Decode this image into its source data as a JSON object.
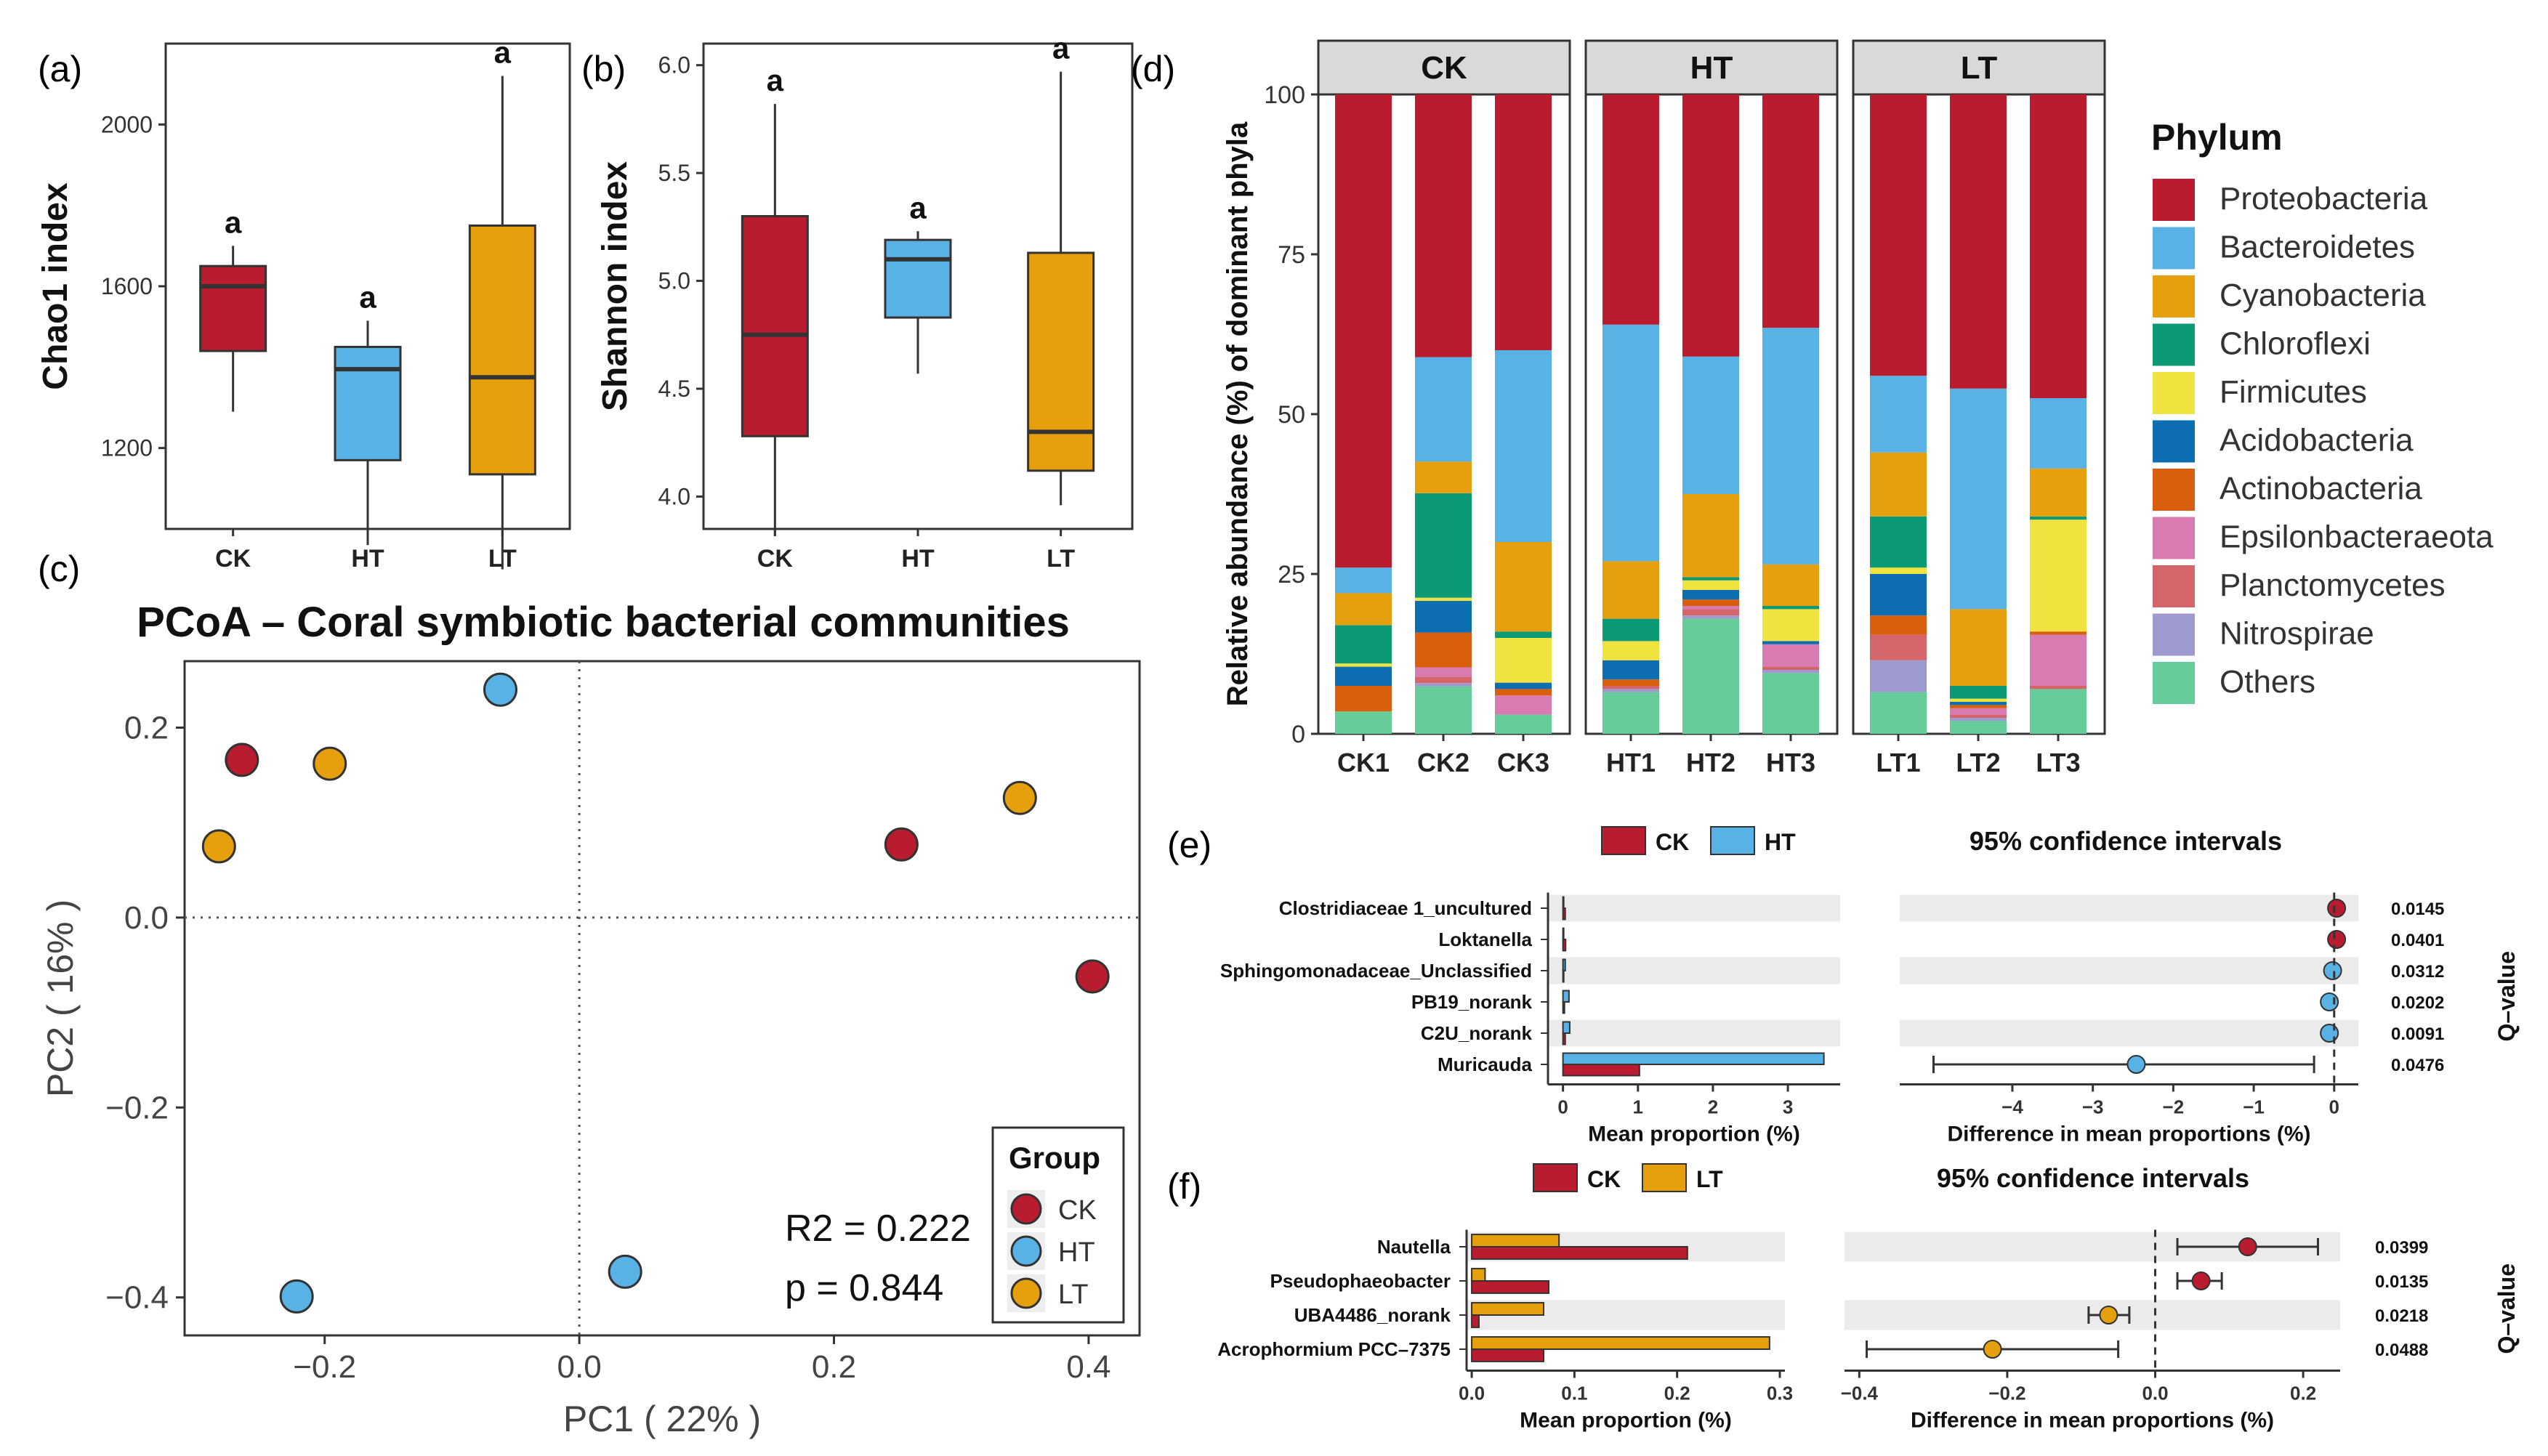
{
  "colors": {
    "CK": "#b81c2e",
    "HT": "#58b2e6",
    "LT": "#e6a00e",
    "grid": "#ebebeb",
    "strip": "#d9d9d9",
    "axis": "#333333"
  },
  "panel_labels": {
    "a": "(a)",
    "b": "(b)",
    "c": "(c)",
    "d": "(d)",
    "e": "(e)",
    "f": "(f)"
  },
  "chart_data": [
    {
      "id": "a",
      "type": "box",
      "ylabel": "Chao1 index",
      "categories": [
        "CK",
        "HT",
        "LT"
      ],
      "ylim": [
        1000,
        2200
      ],
      "yticks": [
        1200,
        1600,
        2000
      ],
      "boxes": [
        {
          "group": "CK",
          "min": 1290,
          "q1": 1440,
          "median": 1600,
          "q3": 1650,
          "max": 1700,
          "letter": "a"
        },
        {
          "group": "HT",
          "min": 960,
          "q1": 1170,
          "median": 1395,
          "q3": 1450,
          "max": 1515,
          "letter": "a"
        },
        {
          "group": "LT",
          "min": 900,
          "q1": 1135,
          "median": 1375,
          "q3": 1750,
          "max": 2120,
          "letter": "a"
        }
      ]
    },
    {
      "id": "b",
      "type": "box",
      "ylabel": "Shannon index",
      "categories": [
        "CK",
        "HT",
        "LT"
      ],
      "ylim": [
        3.85,
        6.1
      ],
      "yticks": [
        "4.0",
        "4.5",
        "5.0",
        "5.5",
        "6.0"
      ],
      "boxes": [
        {
          "group": "CK",
          "min": 3.82,
          "q1": 4.28,
          "median": 4.75,
          "q3": 5.3,
          "max": 5.82,
          "letter": "a"
        },
        {
          "group": "HT",
          "min": 4.57,
          "q1": 4.83,
          "median": 5.1,
          "q3": 5.19,
          "max": 5.23,
          "letter": "a"
        },
        {
          "group": "LT",
          "min": 3.96,
          "q1": 4.12,
          "median": 4.3,
          "q3": 5.13,
          "max": 5.97,
          "letter": "a"
        }
      ]
    },
    {
      "id": "c",
      "type": "scatter",
      "title": "PCoA – Coral symbiotic bacterial communities",
      "xlabel": "PC1 ( 22% )",
      "ylabel": "PC2 ( 16% )",
      "xlim": [
        -0.31,
        0.44
      ],
      "ylim": [
        -0.44,
        0.27
      ],
      "xticks": [
        "−0.2",
        "0.0",
        "0.2",
        "0.4"
      ],
      "xtick_values": [
        -0.2,
        0.0,
        0.2,
        0.4
      ],
      "yticks": [
        "−0.4",
        "−0.2",
        "0.0",
        "0.2"
      ],
      "ytick_values": [
        -0.4,
        -0.2,
        0.0,
        0.2
      ],
      "points": [
        {
          "group": "CK",
          "x": -0.265,
          "y": 0.166
        },
        {
          "group": "CK",
          "x": 0.253,
          "y": 0.077
        },
        {
          "group": "CK",
          "x": 0.403,
          "y": -0.062
        },
        {
          "group": "HT",
          "x": -0.062,
          "y": 0.24
        },
        {
          "group": "HT",
          "x": -0.222,
          "y": -0.399
        },
        {
          "group": "HT",
          "x": 0.036,
          "y": -0.373
        },
        {
          "group": "LT",
          "x": -0.196,
          "y": 0.162
        },
        {
          "group": "LT",
          "x": -0.283,
          "y": 0.075
        },
        {
          "group": "LT",
          "x": 0.346,
          "y": 0.126
        }
      ],
      "legend_title": "Group",
      "legend": [
        "CK",
        "HT",
        "LT"
      ],
      "stat_r2": "R2 = 0.222",
      "stat_p": "p = 0.844"
    },
    {
      "id": "d",
      "type": "stacked_bar",
      "ylabel": "Relative abundance (%) of dominant phyla",
      "ylim": [
        0,
        100
      ],
      "yticks": [
        "0",
        "25",
        "50",
        "75",
        "100"
      ],
      "ytick_values": [
        0,
        25,
        50,
        75,
        100
      ],
      "facets": [
        {
          "name": "CK",
          "samples": [
            "CK1",
            "CK2",
            "CK3"
          ]
        },
        {
          "name": "HT",
          "samples": [
            "HT1",
            "HT2",
            "HT3"
          ]
        },
        {
          "name": "LT",
          "samples": [
            "LT1",
            "LT2",
            "LT3"
          ]
        }
      ],
      "legend_title": "Phylum",
      "series": [
        {
          "name": "Proteobacteria",
          "color": "#b81c2e"
        },
        {
          "name": "Bacteroidetes",
          "color": "#58b2e6"
        },
        {
          "name": "Cyanobacteria",
          "color": "#e6a00e"
        },
        {
          "name": "Chloroflexi",
          "color": "#0c9a76"
        },
        {
          "name": "Firmicutes",
          "color": "#f0e340"
        },
        {
          "name": "Acidobacteria",
          "color": "#0c6db0"
        },
        {
          "name": "Actinobacteria",
          "color": "#d95f0e"
        },
        {
          "name": "Epsilonbacteraeota",
          "color": "#d87bb0"
        },
        {
          "name": "Planctomycetes",
          "color": "#d4666b"
        },
        {
          "name": "Nitrospirae",
          "color": "#9e9ad0"
        },
        {
          "name": "Others",
          "color": "#66cc99"
        }
      ],
      "values": {
        "CK1": [
          74,
          4,
          5,
          6,
          0.5,
          3,
          4,
          0,
          0,
          0,
          3.5
        ],
        "CK2": [
          41.5,
          16.5,
          5,
          16.5,
          0.5,
          5,
          5.5,
          1.5,
          1,
          0.5,
          7.5
        ],
        "CK3": [
          40,
          30,
          14,
          1,
          7,
          1,
          1,
          3,
          0,
          0,
          3
        ],
        "HT1": [
          36,
          37,
          9,
          3.5,
          3,
          3,
          1,
          0,
          0.5,
          0.5,
          6.5
        ],
        "HT2": [
          41,
          21.5,
          13,
          0.5,
          1.5,
          1.5,
          1,
          0.5,
          1,
          0.5,
          18
        ],
        "HT3": [
          36.5,
          37,
          6.5,
          0.5,
          5,
          0.5,
          0,
          3.5,
          0.5,
          0.5,
          9.5
        ],
        "LT1": [
          44,
          12,
          10,
          8,
          1,
          6.5,
          3,
          0,
          4,
          5,
          6.5
        ],
        "LT2": [
          46,
          34.5,
          12,
          2,
          0.5,
          0.5,
          0.5,
          1,
          0.5,
          0.5,
          2
        ],
        "LT3": [
          47.5,
          11,
          7.5,
          0.5,
          17.5,
          0,
          0.5,
          8,
          0.5,
          0,
          7
        ]
      }
    },
    {
      "id": "e",
      "type": "extended_error_bar",
      "legend": [
        "CK",
        "HT"
      ],
      "ci_title": "95% confidence intervals",
      "bar_xlabel": "Mean proportion (%)",
      "diff_xlabel": "Difference in mean proportions (%)",
      "qlabel": "Q–value",
      "bar_xlim": [
        -0.2,
        3.6
      ],
      "bar_xticks": [
        "0",
        "1",
        "2",
        "3"
      ],
      "bar_xtick_values": [
        0,
        1,
        2,
        3
      ],
      "diff_xlim": [
        -5.4,
        0.3
      ],
      "diff_xticks": [
        "−4",
        "−3",
        "−2",
        "−1",
        "0"
      ],
      "diff_xtick_values": [
        -4,
        -3,
        -2,
        -1,
        0
      ],
      "features": [
        {
          "name": "Clostridiaceae 1_uncultured",
          "a": 0.03,
          "b": 0.003,
          "diff": 0.03,
          "lo": 0.01,
          "hi": 0.05,
          "q": "0.0145",
          "winner": "CK"
        },
        {
          "name": "Loktanella",
          "a": 0.035,
          "b": 0.004,
          "diff": 0.03,
          "lo": 0.01,
          "hi": 0.05,
          "q": "0.0401",
          "winner": "CK"
        },
        {
          "name": "Sphingomonadaceae_Unclassified",
          "a": 0.01,
          "b": 0.03,
          "diff": -0.02,
          "lo": -0.04,
          "hi": 0.0,
          "q": "0.0312",
          "winner": "HT"
        },
        {
          "name": "PB19_norank",
          "a": 0.02,
          "b": 0.08,
          "diff": -0.06,
          "lo": -0.09,
          "hi": -0.03,
          "q": "0.0202",
          "winner": "HT"
        },
        {
          "name": "C2U_norank",
          "a": 0.03,
          "b": 0.09,
          "diff": -0.06,
          "lo": -0.1,
          "hi": -0.02,
          "q": "0.0091",
          "winner": "HT"
        },
        {
          "name": "Muricauda",
          "a": 1.02,
          "b": 3.48,
          "diff": -2.46,
          "lo": -4.98,
          "hi": -0.25,
          "q": "0.0476",
          "winner": "HT"
        }
      ]
    },
    {
      "id": "f",
      "type": "extended_error_bar",
      "legend": [
        "CK",
        "LT"
      ],
      "ci_title": "95% confidence intervals",
      "bar_xlabel": "Mean proportion (%)",
      "diff_xlabel": "Difference in mean proportions (%)",
      "qlabel": "Q–value",
      "bar_xlim": [
        -0.005,
        0.3
      ],
      "bar_xticks": [
        "0.0",
        "0.1",
        "0.2",
        "0.3"
      ],
      "bar_xtick_values": [
        0,
        0.1,
        0.2,
        0.3
      ],
      "diff_xlim": [
        -0.42,
        0.25
      ],
      "diff_xticks": [
        "−0.4",
        "−0.2",
        "0.0",
        "0.2"
      ],
      "diff_xtick_values": [
        -0.4,
        -0.2,
        0,
        0.2
      ],
      "features": [
        {
          "name": "Nautella",
          "a": 0.21,
          "b": 0.085,
          "diff": 0.125,
          "lo": 0.03,
          "hi": 0.22,
          "q": "0.0399",
          "winner": "CK"
        },
        {
          "name": "Pseudophaeobacter",
          "a": 0.075,
          "b": 0.013,
          "diff": 0.062,
          "lo": 0.03,
          "hi": 0.09,
          "q": "0.0135",
          "winner": "CK"
        },
        {
          "name": "UBA4486_norank",
          "a": 0.007,
          "b": 0.07,
          "diff": -0.063,
          "lo": -0.09,
          "hi": -0.035,
          "q": "0.0218",
          "winner": "LT"
        },
        {
          "name": "Acrophormium PCC–7375",
          "a": 0.07,
          "b": 0.29,
          "diff": -0.22,
          "lo": -0.39,
          "hi": -0.05,
          "q": "0.0488",
          "winner": "LT"
        }
      ]
    }
  ]
}
